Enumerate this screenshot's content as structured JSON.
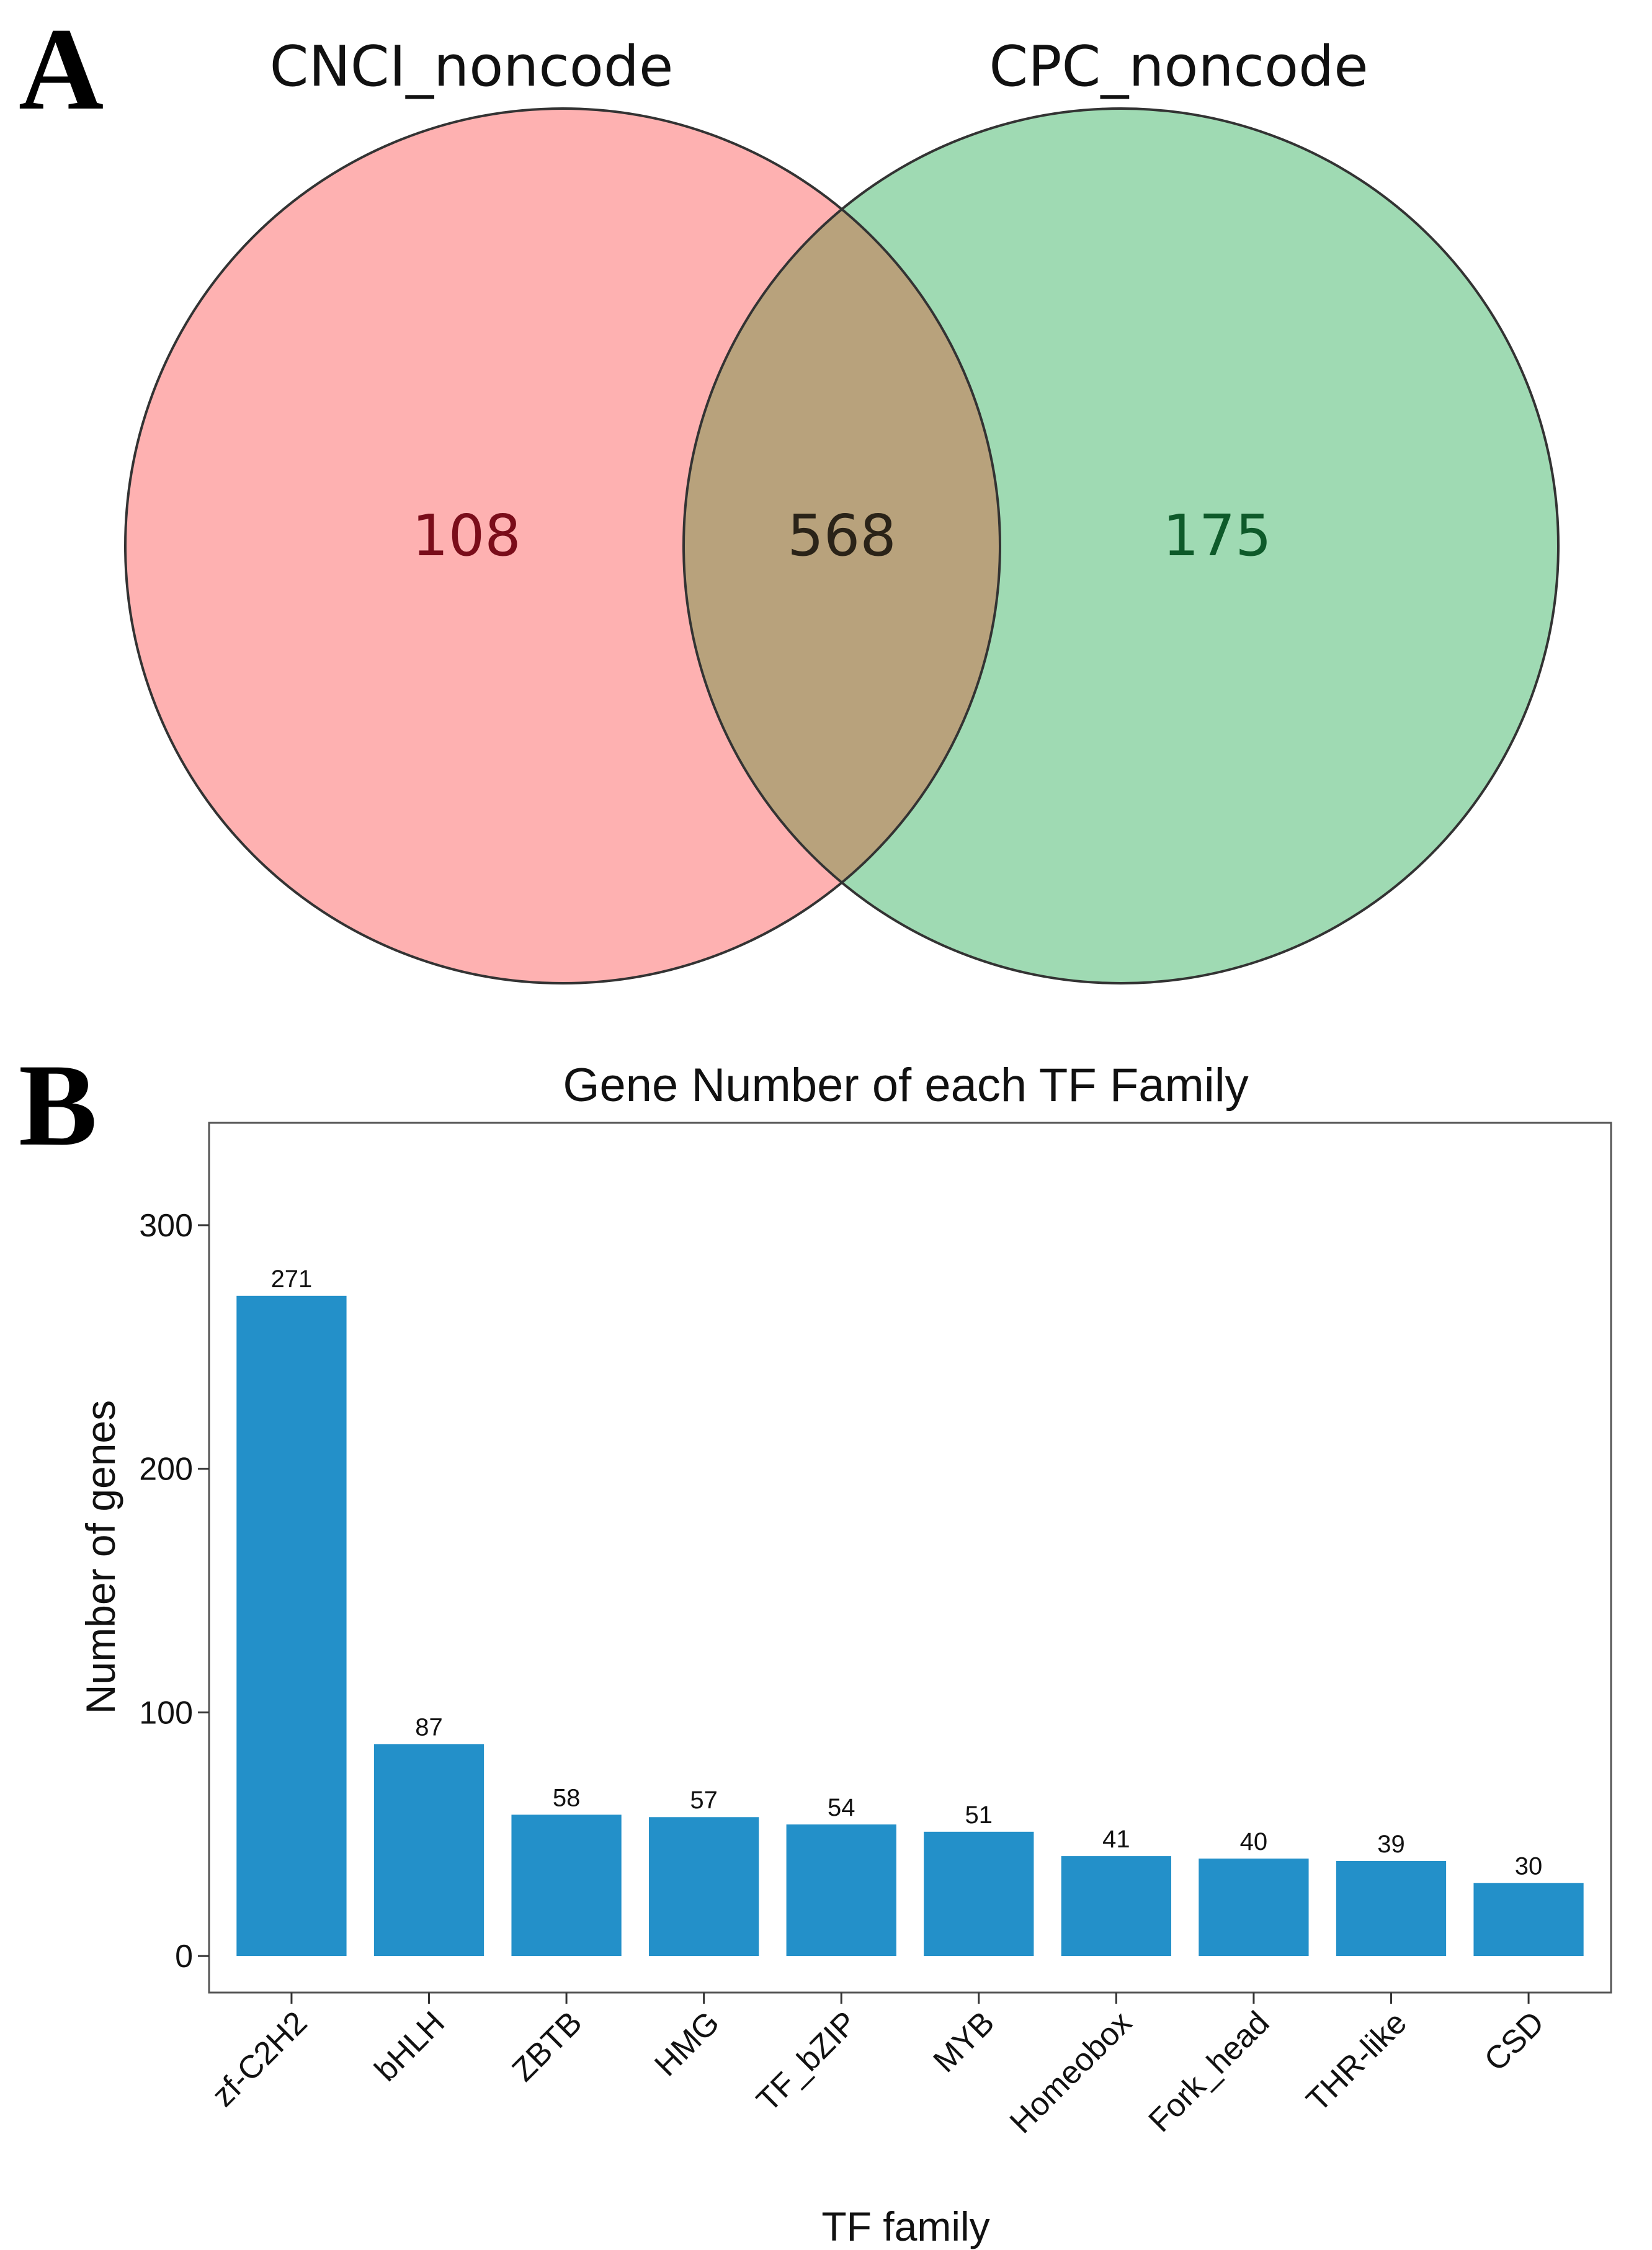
{
  "panels": {
    "a": "A",
    "b": "B"
  },
  "venn": {
    "set_left": {
      "name": "CNCI_noncode",
      "count": "108",
      "color": "#fd8c8c",
      "label_color": "#7a0d1a"
    },
    "set_right": {
      "name": "CPC_noncode",
      "count": "175",
      "color": "#6cc68b",
      "label_color": "#0e5a2a"
    },
    "intersection": {
      "count": "568",
      "color": "#b8a27c",
      "label_color": "#2a2318"
    }
  },
  "chart_data": {
    "type": "bar",
    "title": "Gene Number of each TF Family",
    "xlabel": "TF family",
    "ylabel": "Number of genes",
    "categories": [
      "zf-C2H2",
      "bHLH",
      "ZBTB",
      "HMG",
      "TF_bZIP",
      "MYB",
      "Homeobox",
      "Fork_head",
      "THR-like",
      "CSD"
    ],
    "values": [
      271,
      87,
      58,
      57,
      54,
      51,
      41,
      40,
      39,
      30
    ],
    "ylim": [
      -15,
      342
    ],
    "yticks": [
      0,
      100,
      200,
      300
    ],
    "bar_color": "#2390c9",
    "grid": false
  }
}
